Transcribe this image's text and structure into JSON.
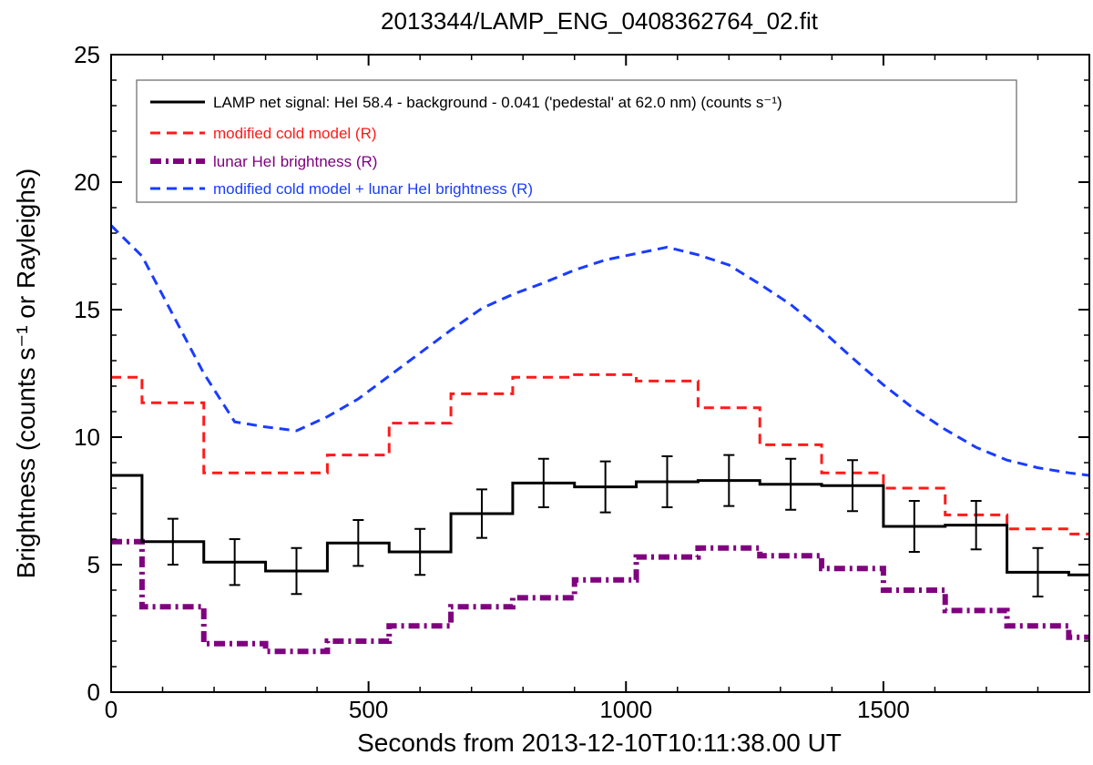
{
  "chart_data": {
    "type": "line",
    "title": "2013344/LAMP_ENG_0408362764_02.fit",
    "xlabel": "Seconds from 2013-12-10T10:11:38.00 UT",
    "ylabel": "Brightness (counts s⁻¹ or Rayleighs)",
    "xlim": [
      0,
      1900
    ],
    "ylim": [
      0,
      25
    ],
    "xticks": [
      0,
      500,
      1000,
      1500
    ],
    "yticks": [
      0,
      5,
      10,
      15,
      20,
      25
    ],
    "legend_position": "top",
    "series": [
      {
        "name": "LAMP net signal: HeI 58.4 - background - 0.041 ('pedestal' at 62.0 nm) (counts s⁻¹)",
        "style": "solid-steps",
        "color": "#000000",
        "bin_edges": [
          0,
          60,
          180,
          300,
          420,
          540,
          660,
          780,
          900,
          1020,
          1140,
          1260,
          1380,
          1500,
          1620,
          1740,
          1860,
          1900
        ],
        "values": [
          8.5,
          5.9,
          5.1,
          4.75,
          5.85,
          5.5,
          7.0,
          8.2,
          8.05,
          8.25,
          8.3,
          8.15,
          8.1,
          6.5,
          6.55,
          4.7,
          4.6
        ],
        "errorbars": [
          {
            "x": 120,
            "y": 5.9,
            "err": 0.9
          },
          {
            "x": 240,
            "y": 5.1,
            "err": 0.9
          },
          {
            "x": 360,
            "y": 4.75,
            "err": 0.9
          },
          {
            "x": 480,
            "y": 5.85,
            "err": 0.9
          },
          {
            "x": 600,
            "y": 5.5,
            "err": 0.9
          },
          {
            "x": 720,
            "y": 7.0,
            "err": 0.95
          },
          {
            "x": 840,
            "y": 8.2,
            "err": 0.95
          },
          {
            "x": 960,
            "y": 8.05,
            "err": 1.0
          },
          {
            "x": 1080,
            "y": 8.25,
            "err": 1.0
          },
          {
            "x": 1200,
            "y": 8.3,
            "err": 1.0
          },
          {
            "x": 1320,
            "y": 8.15,
            "err": 1.0
          },
          {
            "x": 1440,
            "y": 8.1,
            "err": 1.0
          },
          {
            "x": 1560,
            "y": 6.5,
            "err": 1.0
          },
          {
            "x": 1680,
            "y": 6.55,
            "err": 0.95
          },
          {
            "x": 1800,
            "y": 4.7,
            "err": 0.95
          }
        ]
      },
      {
        "name": "modified cold model (R)",
        "style": "dashed-steps",
        "color": "#ff1a1a",
        "bin_edges": [
          0,
          60,
          180,
          300,
          420,
          540,
          660,
          780,
          900,
          1020,
          1140,
          1260,
          1380,
          1500,
          1620,
          1740,
          1860,
          1900
        ],
        "values": [
          12.35,
          11.35,
          8.6,
          8.6,
          9.3,
          10.55,
          11.7,
          12.35,
          12.45,
          12.2,
          11.15,
          9.7,
          8.6,
          8.0,
          6.95,
          6.4,
          6.2
        ]
      },
      {
        "name": "lunar HeI brightness (R)",
        "style": "dashdot-steps",
        "color": "#800080",
        "bin_edges": [
          0,
          60,
          180,
          300,
          420,
          540,
          660,
          780,
          900,
          1020,
          1140,
          1260,
          1380,
          1500,
          1620,
          1740,
          1860,
          1900
        ],
        "values": [
          5.9,
          3.35,
          1.9,
          1.6,
          2.0,
          2.6,
          3.35,
          3.7,
          4.4,
          5.3,
          5.65,
          5.35,
          4.85,
          4.0,
          3.2,
          2.6,
          2.15
        ]
      },
      {
        "name": "modified cold model + lunar HeI brightness (R)",
        "style": "dashed",
        "color": "#1a3cff",
        "x": [
          0,
          60,
          120,
          180,
          240,
          300,
          360,
          420,
          480,
          540,
          600,
          660,
          720,
          780,
          840,
          900,
          960,
          1020,
          1080,
          1140,
          1200,
          1260,
          1320,
          1380,
          1440,
          1500,
          1560,
          1620,
          1680,
          1740,
          1800,
          1860,
          1900
        ],
        "y": [
          18.3,
          17.1,
          14.8,
          12.5,
          10.6,
          10.4,
          10.25,
          10.8,
          11.5,
          12.4,
          13.3,
          14.2,
          15.05,
          15.6,
          16.05,
          16.55,
          16.95,
          17.2,
          17.45,
          17.15,
          16.75,
          16.0,
          15.2,
          14.2,
          13.1,
          12.05,
          11.1,
          10.3,
          9.6,
          9.1,
          8.8,
          8.6,
          8.5
        ]
      }
    ]
  }
}
